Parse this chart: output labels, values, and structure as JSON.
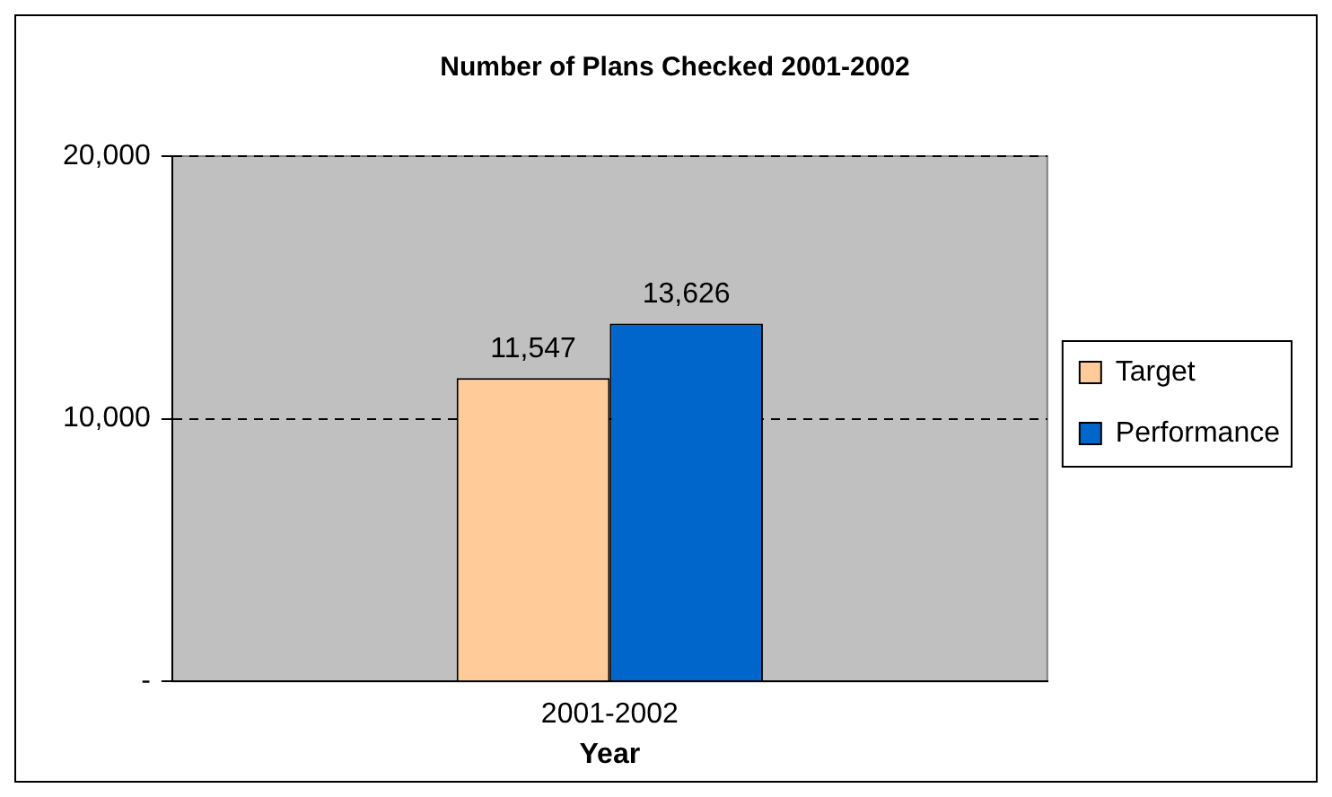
{
  "chart_data": {
    "type": "bar",
    "title": "Number of Plans Checked 2001-2002",
    "xlabel": "Year",
    "categories": [
      "2001-2002"
    ],
    "series": [
      {
        "name": "Target",
        "color": "#ffcc99",
        "values": [
          11547
        ],
        "value_labels": [
          "11,547"
        ]
      },
      {
        "name": "Performance",
        "color": "#0066cc",
        "values": [
          13626
        ],
        "value_labels": [
          "13,626"
        ]
      }
    ],
    "ylim": [
      0,
      20000
    ],
    "yticks": [
      {
        "value": 0,
        "label": "-"
      },
      {
        "value": 10000,
        "label": "10,000"
      },
      {
        "value": 20000,
        "label": "20,000"
      }
    ],
    "grid": "y",
    "legend": "right"
  }
}
